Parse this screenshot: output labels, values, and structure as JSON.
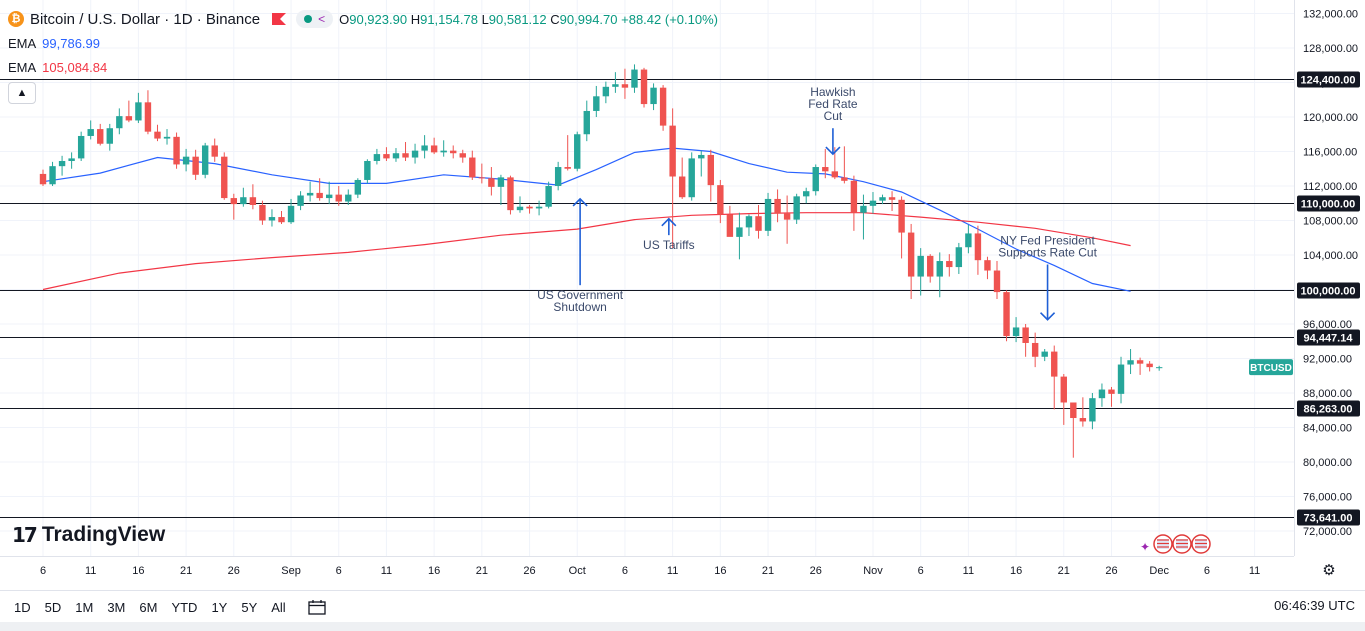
{
  "header": {
    "coin_glyph": "₿",
    "symbol": "Bitcoin / U.S. Dollar · 1D · Binance",
    "ohlc": {
      "o_label": "O",
      "o": "90,923.90",
      "h_label": "H",
      "h": "91,154.78",
      "l_label": "L",
      "l": "90,581.12",
      "c_label": "C",
      "c": "90,994.70",
      "change": "+88.42 (+0.10%)"
    }
  },
  "indicators": [
    {
      "label": "EMA",
      "value": "99,786.99",
      "color": "#2962ff"
    },
    {
      "label": "EMA",
      "value": "105,084.84",
      "color": "#f23645"
    }
  ],
  "colors": {
    "up": "#26a69a",
    "down": "#ef5350",
    "ema50": "#2962ff",
    "ema200": "#f23645",
    "annotation": "#1e5fd6"
  },
  "watermark": {
    "mark": "17",
    "text": "TradingView"
  },
  "toolbar": {
    "timeframes": [
      "1D",
      "5D",
      "1M",
      "3M",
      "6M",
      "YTD",
      "1Y",
      "5Y",
      "All"
    ],
    "clock": "06:46:39 UTC"
  },
  "chart_data": {
    "type": "candlestick",
    "title": "Bitcoin / U.S. Dollar · 1D · Binance",
    "ylim": [
      70000,
      133000
    ],
    "y_ticks": [
      72000,
      76000,
      80000,
      84000,
      88000,
      92000,
      96000,
      100000,
      104000,
      108000,
      112000,
      116000,
      120000,
      124000,
      128000,
      132000
    ],
    "y_tick_labels": [
      "72,000.00",
      "76,000.00",
      "80,000.00",
      "84,000.00",
      "88,000.00",
      "92,000.00",
      "96,000.00",
      "100,000.00",
      "104,000.00",
      "108,000.00",
      "112,000.00",
      "116,000.00",
      "120,000.00",
      "124,000.00",
      "128,000.00",
      "132,000.00"
    ],
    "x_ticks": [
      {
        "i": 0,
        "label": "6"
      },
      {
        "i": 5,
        "label": "11"
      },
      {
        "i": 10,
        "label": "16"
      },
      {
        "i": 15,
        "label": "21"
      },
      {
        "i": 20,
        "label": "26"
      },
      {
        "i": 26,
        "label": "Sep"
      },
      {
        "i": 31,
        "label": "6"
      },
      {
        "i": 36,
        "label": "11"
      },
      {
        "i": 41,
        "label": "16"
      },
      {
        "i": 46,
        "label": "21"
      },
      {
        "i": 51,
        "label": "26"
      },
      {
        "i": 56,
        "label": "Oct"
      },
      {
        "i": 61,
        "label": "6"
      },
      {
        "i": 66,
        "label": "11"
      },
      {
        "i": 71,
        "label": "16"
      },
      {
        "i": 76,
        "label": "21"
      },
      {
        "i": 81,
        "label": "26"
      },
      {
        "i": 87,
        "label": "Nov"
      },
      {
        "i": 92,
        "label": "6"
      },
      {
        "i": 97,
        "label": "11"
      },
      {
        "i": 102,
        "label": "16"
      },
      {
        "i": 107,
        "label": "21"
      },
      {
        "i": 112,
        "label": "26"
      },
      {
        "i": 117,
        "label": "Dec"
      },
      {
        "i": 122,
        "label": "6"
      },
      {
        "i": 127,
        "label": "11"
      }
    ],
    "series": [
      {
        "name": "BTCUSD",
        "candles": [
          [
            113400,
            113900,
            112000,
            112200
          ],
          [
            112200,
            114800,
            112000,
            114300
          ],
          [
            114300,
            115500,
            113200,
            114900
          ],
          [
            114900,
            115900,
            114000,
            115200
          ],
          [
            115200,
            118300,
            114900,
            117800
          ],
          [
            117800,
            119600,
            117400,
            118600
          ],
          [
            118600,
            119200,
            116700,
            116900
          ],
          [
            116900,
            119200,
            116100,
            118700
          ],
          [
            118700,
            121000,
            118000,
            120100
          ],
          [
            120100,
            121900,
            119400,
            119600
          ],
          [
            119600,
            122800,
            119300,
            121700
          ],
          [
            121700,
            123100,
            118000,
            118300
          ],
          [
            118300,
            119100,
            117200,
            117500
          ],
          [
            117500,
            118600,
            116800,
            117700
          ],
          [
            117700,
            118200,
            114000,
            114500
          ],
          [
            114500,
            116300,
            113700,
            115400
          ],
          [
            115400,
            116200,
            112700,
            113300
          ],
          [
            113300,
            117000,
            112900,
            116700
          ],
          [
            116700,
            117500,
            114800,
            115400
          ],
          [
            115400,
            115900,
            110400,
            110600
          ],
          [
            110600,
            111100,
            108100,
            109900
          ],
          [
            109900,
            111800,
            109600,
            110700
          ],
          [
            110700,
            112200,
            109300,
            109800
          ],
          [
            109800,
            110300,
            107500,
            108000
          ],
          [
            108000,
            109300,
            107300,
            108400
          ],
          [
            108400,
            109100,
            107600,
            107800
          ],
          [
            107800,
            110500,
            107600,
            109700
          ],
          [
            109700,
            111400,
            109200,
            110900
          ],
          [
            110900,
            112500,
            110200,
            111200
          ],
          [
            111200,
            112900,
            110300,
            110600
          ],
          [
            110600,
            112500,
            109900,
            111000
          ],
          [
            111000,
            112000,
            109700,
            110200
          ],
          [
            110200,
            111600,
            109800,
            111000
          ],
          [
            111000,
            112900,
            110600,
            112700
          ],
          [
            112700,
            115100,
            112300,
            114900
          ],
          [
            114900,
            116300,
            114500,
            115700
          ],
          [
            115700,
            116500,
            114900,
            115200
          ],
          [
            115200,
            116400,
            114800,
            115800
          ],
          [
            115800,
            117100,
            114900,
            115300
          ],
          [
            115300,
            116900,
            114600,
            116100
          ],
          [
            116100,
            117900,
            115200,
            116700
          ],
          [
            116700,
            117600,
            115700,
            115900
          ],
          [
            115900,
            117300,
            115400,
            116100
          ],
          [
            116100,
            116700,
            115200,
            115800
          ],
          [
            115800,
            116200,
            114700,
            115300
          ],
          [
            115300,
            116100,
            112700,
            113000
          ],
          [
            113000,
            114600,
            112300,
            112900
          ],
          [
            112900,
            114200,
            110900,
            111900
          ],
          [
            111900,
            113300,
            109800,
            113000
          ],
          [
            113000,
            113200,
            108700,
            109200
          ],
          [
            109200,
            110800,
            108900,
            109600
          ],
          [
            109600,
            109800,
            108800,
            109400
          ],
          [
            109400,
            110300,
            108600,
            109600
          ],
          [
            109600,
            112500,
            109400,
            112000
          ],
          [
            112000,
            114800,
            111500,
            114200
          ],
          [
            114200,
            117900,
            113800,
            114000
          ],
          [
            114000,
            118300,
            113700,
            118000
          ],
          [
            118000,
            121900,
            117200,
            120700
          ],
          [
            120700,
            123600,
            120000,
            122400
          ],
          [
            122400,
            124100,
            121600,
            123500
          ],
          [
            123500,
            125200,
            122800,
            123800
          ],
          [
            123800,
            125600,
            122100,
            123400
          ],
          [
            123400,
            126100,
            122800,
            125500
          ],
          [
            125500,
            125700,
            121100,
            121500
          ],
          [
            121500,
            123900,
            120800,
            123400
          ],
          [
            123400,
            123700,
            118400,
            119000
          ],
          [
            119000,
            121000,
            104800,
            113100
          ],
          [
            113100,
            115300,
            110500,
            110700
          ],
          [
            110700,
            115900,
            110300,
            115200
          ],
          [
            115200,
            116100,
            113100,
            115600
          ],
          [
            115600,
            116200,
            110200,
            112100
          ],
          [
            112100,
            112700,
            107700,
            108700
          ],
          [
            108700,
            109700,
            106200,
            106100
          ],
          [
            106100,
            108900,
            103500,
            107200
          ],
          [
            107200,
            108700,
            106200,
            108500
          ],
          [
            108500,
            109800,
            105900,
            106800
          ],
          [
            106800,
            111200,
            106200,
            110500
          ],
          [
            110500,
            111600,
            107800,
            108800
          ],
          [
            108800,
            110900,
            105300,
            108100
          ],
          [
            108100,
            111100,
            107600,
            110800
          ],
          [
            110800,
            111800,
            110000,
            111400
          ],
          [
            111400,
            114500,
            110900,
            114200
          ],
          [
            114200,
            116300,
            112900,
            113700
          ],
          [
            113700,
            116500,
            112800,
            113000
          ],
          [
            113000,
            116600,
            112300,
            112600
          ],
          [
            112600,
            113200,
            106800,
            108900
          ],
          [
            108900,
            111000,
            105800,
            109700
          ],
          [
            109700,
            111300,
            108800,
            110300
          ],
          [
            110300,
            111000,
            109900,
            110700
          ],
          [
            110700,
            111400,
            109100,
            110400
          ],
          [
            110400,
            110800,
            103600,
            106600
          ],
          [
            106600,
            107600,
            98900,
            101500
          ],
          [
            101500,
            104800,
            99300,
            103900
          ],
          [
            103900,
            104100,
            100800,
            101500
          ],
          [
            101500,
            104300,
            99100,
            103300
          ],
          [
            103300,
            104100,
            101500,
            102600
          ],
          [
            102600,
            105400,
            101800,
            104900
          ],
          [
            104900,
            107500,
            104200,
            106500
          ],
          [
            106500,
            107400,
            101700,
            103400
          ],
          [
            103400,
            103800,
            101200,
            102200
          ],
          [
            102200,
            103300,
            98900,
            99700
          ],
          [
            99700,
            99900,
            94000,
            94600
          ],
          [
            94600,
            96800,
            93900,
            95600
          ],
          [
            95600,
            96000,
            92200,
            93800
          ],
          [
            93800,
            95000,
            91000,
            92200
          ],
          [
            92200,
            93100,
            91700,
            92800
          ],
          [
            92800,
            93500,
            86100,
            89900
          ],
          [
            89900,
            90200,
            84300,
            86900
          ],
          [
            86900,
            86900,
            80500,
            85100
          ],
          [
            85100,
            87500,
            84100,
            84700
          ],
          [
            84700,
            88000,
            83800,
            87400
          ],
          [
            87400,
            89100,
            86400,
            88400
          ],
          [
            88400,
            88700,
            86400,
            87900
          ],
          [
            87900,
            92200,
            86800,
            91300
          ],
          [
            91300,
            93100,
            90200,
            91800
          ],
          [
            91800,
            92100,
            90100,
            91400
          ],
          [
            91400,
            91700,
            90500,
            91000
          ],
          [
            90923.9,
            91154.78,
            90581.12,
            90994.7
          ]
        ]
      },
      {
        "name": "EMA 50",
        "points": [
          [
            0,
            112500
          ],
          [
            6,
            113500
          ],
          [
            12,
            115300
          ],
          [
            18,
            114600
          ],
          [
            24,
            113300
          ],
          [
            30,
            112300
          ],
          [
            36,
            112300
          ],
          [
            42,
            113300
          ],
          [
            48,
            112800
          ],
          [
            54,
            112100
          ],
          [
            58,
            113900
          ],
          [
            62,
            115900
          ],
          [
            66,
            116400
          ],
          [
            70,
            116000
          ],
          [
            74,
            114600
          ],
          [
            78,
            113600
          ],
          [
            82,
            113400
          ],
          [
            86,
            112500
          ],
          [
            90,
            111300
          ],
          [
            94,
            109200
          ],
          [
            98,
            107000
          ],
          [
            102,
            104700
          ],
          [
            106,
            102800
          ],
          [
            110,
            100700
          ],
          [
            114,
            99786.99
          ]
        ]
      },
      {
        "name": "EMA 200",
        "points": [
          [
            0,
            100000
          ],
          [
            8,
            101900
          ],
          [
            16,
            103000
          ],
          [
            24,
            103700
          ],
          [
            32,
            104300
          ],
          [
            40,
            105200
          ],
          [
            48,
            106300
          ],
          [
            56,
            107000
          ],
          [
            62,
            108100
          ],
          [
            68,
            108600
          ],
          [
            74,
            108800
          ],
          [
            80,
            108900
          ],
          [
            86,
            108900
          ],
          [
            92,
            108400
          ],
          [
            98,
            107800
          ],
          [
            104,
            107100
          ],
          [
            110,
            106000
          ],
          [
            114,
            105084.84
          ]
        ]
      }
    ],
    "horizontal_levels": [
      {
        "value": 124400,
        "label": "124,400.00"
      },
      {
        "value": 110000,
        "label": "110,000.00"
      },
      {
        "value": 100000,
        "label": "100,000.00"
      },
      {
        "value": 94447.14,
        "label": "94,447.14"
      },
      {
        "value": 86263,
        "label": "86,263.00"
      },
      {
        "value": 73641,
        "label": "73,641.00"
      }
    ],
    "last_price_label": "BTCUSD",
    "annotations": [
      {
        "text": "US Government Shutdown",
        "lines": [
          "US Government",
          "Shutdown"
        ],
        "i": 56.3,
        "dir": "up",
        "arrow_tip": 110500,
        "arrow_tail": 100500
      },
      {
        "text": "US Tariffs",
        "lines": [
          "US Tariffs"
        ],
        "i": 65.6,
        "dir": "up",
        "arrow_tip": 108200,
        "arrow_tail": 106300
      },
      {
        "text": "Hawkish Fed Rate Cut",
        "lines": [
          "Hawkish",
          "Fed Rate",
          "Cut"
        ],
        "i": 82.8,
        "dir": "down",
        "arrow_tip": 115700,
        "arrow_tail": 118700
      },
      {
        "text": "NY Fed President Supports Rate Cut",
        "lines": [
          "NY Fed President",
          "Supports Rate Cut"
        ],
        "i": 105.3,
        "dir": "down",
        "arrow_tip": 96500,
        "arrow_tail": 102900
      }
    ]
  }
}
